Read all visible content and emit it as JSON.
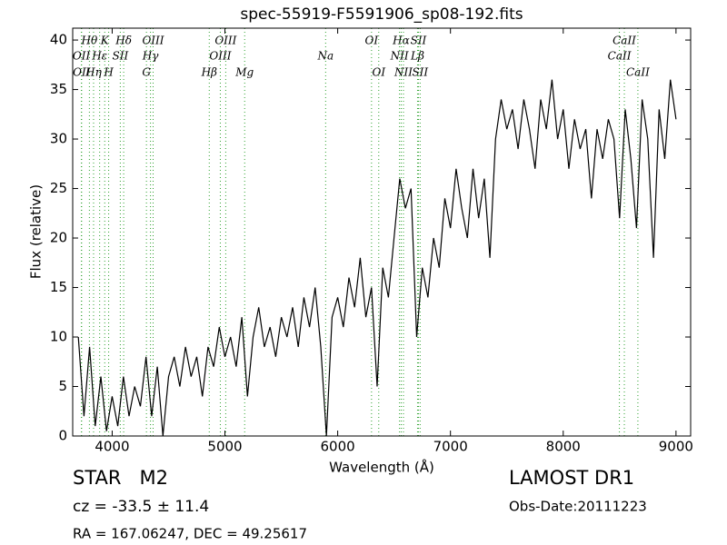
{
  "chart_data": {
    "type": "line",
    "title": "spec-55919-F5591906_sp08-192.fits",
    "xlabel": "Wavelength (Å)",
    "ylabel": "Flux (relative)",
    "xlim": [
      3650,
      9130
    ],
    "ylim": [
      0,
      41.2
    ],
    "xticks": [
      4000,
      5000,
      6000,
      7000,
      8000,
      9000
    ],
    "yticks": [
      0,
      5,
      10,
      15,
      20,
      25,
      30,
      35,
      40
    ],
    "x": [
      3700,
      3750,
      3800,
      3850,
      3900,
      3950,
      4000,
      4050,
      4100,
      4150,
      4200,
      4250,
      4300,
      4350,
      4400,
      4450,
      4500,
      4550,
      4600,
      4650,
      4700,
      4750,
      4800,
      4850,
      4900,
      4950,
      5000,
      5050,
      5100,
      5150,
      5200,
      5250,
      5300,
      5350,
      5400,
      5450,
      5500,
      5550,
      5600,
      5650,
      5700,
      5750,
      5800,
      5850,
      5900,
      5950,
      6000,
      6050,
      6100,
      6150,
      6200,
      6250,
      6300,
      6350,
      6400,
      6450,
      6500,
      6550,
      6600,
      6650,
      6700,
      6750,
      6800,
      6850,
      6900,
      6950,
      7000,
      7050,
      7100,
      7150,
      7200,
      7250,
      7300,
      7350,
      7400,
      7450,
      7500,
      7550,
      7600,
      7650,
      7700,
      7750,
      7800,
      7850,
      7900,
      7950,
      8000,
      8050,
      8100,
      8150,
      8200,
      8250,
      8300,
      8350,
      8400,
      8450,
      8500,
      8550,
      8600,
      8650,
      8700,
      8750,
      8800,
      8850,
      8900,
      8950,
      9000
    ],
    "series": [
      {
        "name": "flux",
        "color": "#000000",
        "values": [
          10,
          2,
          9,
          1,
          6,
          0.5,
          4,
          1,
          6,
          2,
          5,
          3,
          8,
          2,
          7,
          0,
          6,
          8,
          5,
          9,
          6,
          8,
          4,
          9,
          7,
          11,
          8,
          10,
          7,
          12,
          4,
          10,
          13,
          9,
          11,
          8,
          12,
          10,
          13,
          9,
          14,
          11,
          15,
          9,
          0,
          12,
          14,
          11,
          16,
          13,
          18,
          12,
          15,
          5,
          17,
          14,
          20,
          26,
          23,
          25,
          10,
          17,
          14,
          20,
          17,
          24,
          21,
          27,
          23,
          20,
          27,
          22,
          26,
          18,
          30,
          34,
          31,
          33,
          29,
          34,
          31,
          27,
          34,
          31,
          36,
          30,
          33,
          27,
          32,
          29,
          31,
          24,
          31,
          28,
          32,
          30,
          22,
          33,
          28,
          21,
          34,
          30,
          18,
          33,
          28,
          36,
          32
        ]
      }
    ],
    "line_color": "#2ca02c",
    "line_labels": [
      [
        {
          "x": 3798,
          "label": "Hθ"
        },
        {
          "x": 3934,
          "label": "K"
        },
        {
          "x": 4102,
          "label": "Hδ"
        },
        {
          "x": 4363,
          "label": "OIII"
        },
        {
          "x": 5007,
          "label": "OIII"
        },
        {
          "x": 6300,
          "label": "OI"
        },
        {
          "x": 6563,
          "label": "Hα"
        },
        {
          "x": 6716,
          "label": "SII"
        },
        {
          "x": 8542,
          "label": "CaII"
        }
      ],
      [
        {
          "x": 3727,
          "label": "OII"
        },
        {
          "x": 3889,
          "label": "Hε"
        },
        {
          "x": 4072,
          "label": "SII"
        },
        {
          "x": 4340,
          "label": "Hγ"
        },
        {
          "x": 4959,
          "label": "OIII"
        },
        {
          "x": 5893,
          "label": "Na"
        },
        {
          "x": 6548,
          "label": "NII"
        },
        {
          "x": 6708,
          "label": "Lβ"
        },
        {
          "x": 8498,
          "label": "CaII"
        }
      ],
      [
        {
          "x": 3729,
          "label": "OII"
        },
        {
          "x": 3835,
          "label": "Hη"
        },
        {
          "x": 3969,
          "label": "H"
        },
        {
          "x": 4304,
          "label": "G"
        },
        {
          "x": 4861,
          "label": "Hβ"
        },
        {
          "x": 5175,
          "label": "Mg"
        },
        {
          "x": 6364,
          "label": "OI"
        },
        {
          "x": 6583,
          "label": "NII"
        },
        {
          "x": 6731,
          "label": "SII"
        },
        {
          "x": 8662,
          "label": "CaII"
        }
      ]
    ],
    "object_class": "STAR   M2",
    "redshift": "cz = -33.5 ± 11.4",
    "coordinates": "RA = 167.06247, DEC = 49.25617",
    "survey": "LAMOST DR1",
    "obs_date": "Obs-Date:20111223"
  }
}
